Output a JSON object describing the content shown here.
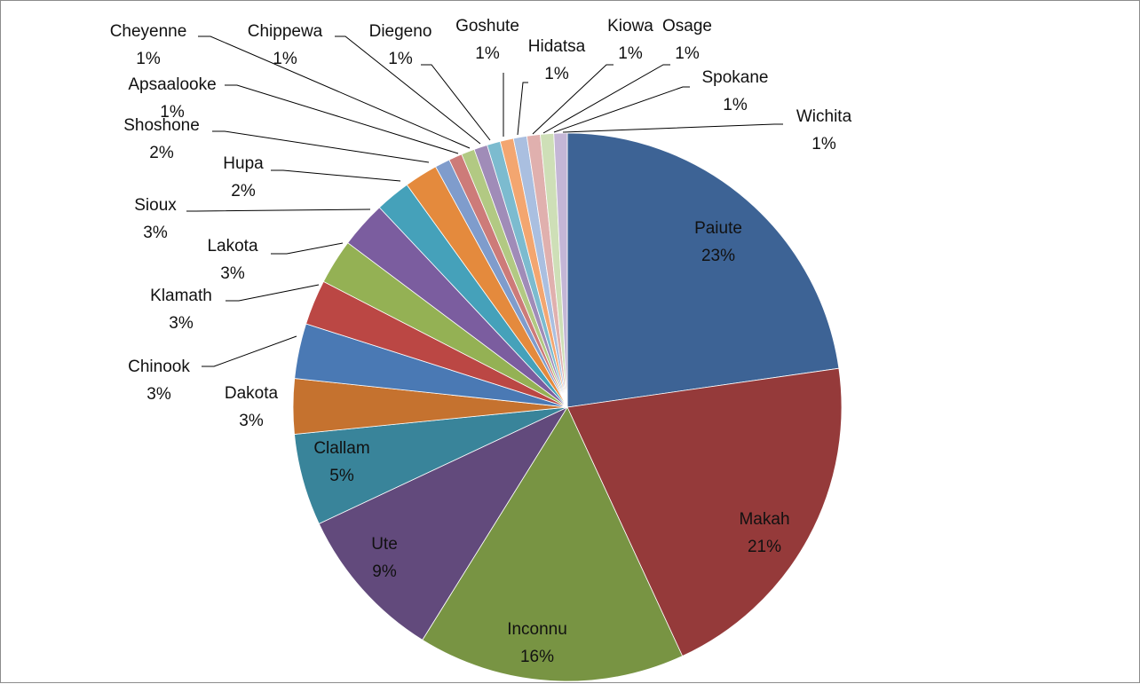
{
  "chart_data": {
    "type": "pie",
    "title": "",
    "start_angle_deg": 0,
    "direction": "clockwise",
    "legend": "none",
    "slices": [
      {
        "name": "Paiute",
        "label": "23%",
        "value": 23.1,
        "color": "#3d6395"
      },
      {
        "name": "Makah",
        "label": "21%",
        "value": 20.7,
        "color": "#953a3a"
      },
      {
        "name": "Inconnu",
        "label": "16%",
        "value": 16.0,
        "color": "#789443"
      },
      {
        "name": "Ute",
        "label": "9%",
        "value": 9.3,
        "color": "#624a7c"
      },
      {
        "name": "Clallam",
        "label": "5%",
        "value": 5.5,
        "color": "#39849a"
      },
      {
        "name": "Dakota",
        "label": "3%",
        "value": 3.3,
        "color": "#c5722f"
      },
      {
        "name": "Chinook",
        "label": "3%",
        "value": 3.3,
        "color": "#4a79b4"
      },
      {
        "name": "Klamath",
        "label": "3%",
        "value": 2.7,
        "color": "#bb4744"
      },
      {
        "name": "Lakota",
        "label": "3%",
        "value": 2.7,
        "color": "#94b154"
      },
      {
        "name": "Sioux",
        "label": "3%",
        "value": 2.8,
        "color": "#7b5d9f"
      },
      {
        "name": "Hupa",
        "label": "2%",
        "value": 2.1,
        "color": "#45a1ba"
      },
      {
        "name": "Shoshone",
        "label": "2%",
        "value": 2.0,
        "color": "#e48a3d"
      },
      {
        "name": "Apsaalooke",
        "label": "1%",
        "value": 0.9,
        "color": "#7f9ccc"
      },
      {
        "name": "Cheyenne",
        "label": "1%",
        "value": 0.8,
        "color": "#cd7b79"
      },
      {
        "name": "Chippewa",
        "label": "1%",
        "value": 0.8,
        "color": "#b2c983"
      },
      {
        "name": "Diegeno",
        "label": "1%",
        "value": 0.8,
        "color": "#a08cb8"
      },
      {
        "name": "Goshute",
        "label": "1%",
        "value": 0.8,
        "color": "#7cbbcf"
      },
      {
        "name": "Hidatsa",
        "label": "1%",
        "value": 0.8,
        "color": "#f3a670"
      },
      {
        "name": "Kiowa",
        "label": "1%",
        "value": 0.8,
        "color": "#aabfe0"
      },
      {
        "name": "Osage",
        "label": "1%",
        "value": 0.8,
        "color": "#e0b0ae"
      },
      {
        "name": "Spokane",
        "label": "1%",
        "value": 0.8,
        "color": "#cedfb7"
      },
      {
        "name": "Wichita",
        "label": "1%",
        "value": 0.8,
        "color": "#c4b6d6"
      }
    ]
  }
}
